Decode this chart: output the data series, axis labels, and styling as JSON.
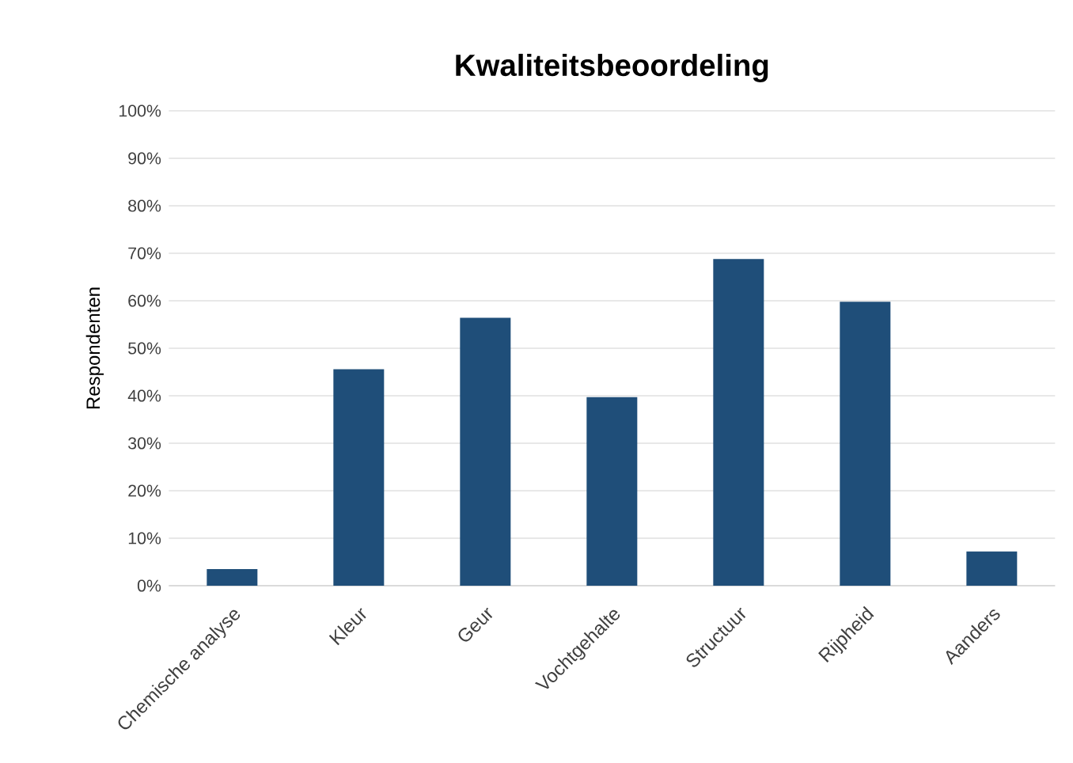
{
  "chart_data": {
    "type": "bar",
    "title": "Kwaliteitsbeoordeling",
    "ylabel": "Respondenten",
    "categories": [
      "Chemische analyse",
      "Kleur",
      "Geur",
      "Vochtgehalte",
      "Structuur",
      "Rijpheid",
      "Aanders"
    ],
    "values": [
      3.5,
      45.6,
      56.4,
      39.7,
      68.8,
      59.8,
      7.2
    ],
    "color": "#1f4e79",
    "ylim": [
      0,
      100
    ],
    "yticks": [
      {
        "value": 0,
        "label": "0%"
      },
      {
        "value": 10,
        "label": "10%"
      },
      {
        "value": 20,
        "label": "20%"
      },
      {
        "value": 30,
        "label": "30%"
      },
      {
        "value": 40,
        "label": "40%"
      },
      {
        "value": 50,
        "label": "50%"
      },
      {
        "value": 60,
        "label": "60%"
      },
      {
        "value": 70,
        "label": "70%"
      },
      {
        "value": 80,
        "label": "80%"
      },
      {
        "value": 90,
        "label": "90%"
      },
      {
        "value": 100,
        "label": "100%"
      }
    ],
    "grid": "y"
  }
}
